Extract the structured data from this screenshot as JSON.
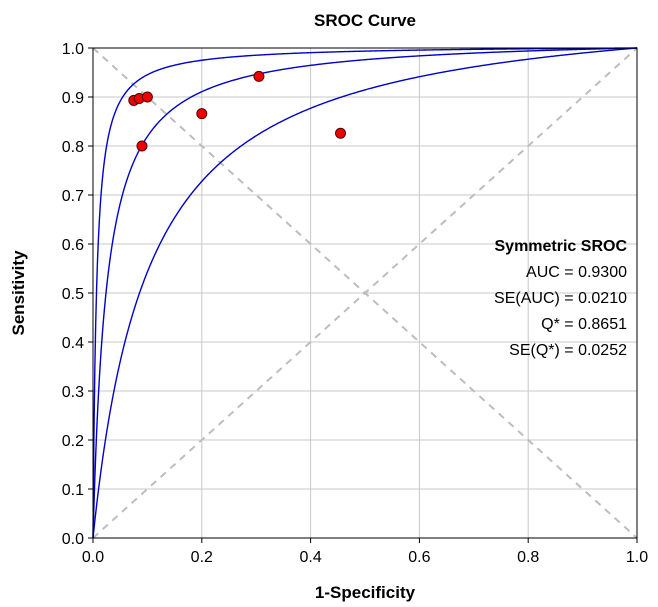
{
  "chart_data": {
    "type": "scatter",
    "title": "SROC Curve",
    "xlabel": "1-Specificity",
    "ylabel": "Sensitivity",
    "xlim": [
      0,
      1
    ],
    "ylim": [
      0,
      1
    ],
    "x_ticks": [
      "0.0",
      "0.2",
      "0.4",
      "0.6",
      "0.8",
      "1.0"
    ],
    "y_ticks": [
      "0.0",
      "0.1",
      "0.2",
      "0.3",
      "0.4",
      "0.5",
      "0.6",
      "0.7",
      "0.8",
      "0.9",
      "1.0"
    ],
    "grid": true,
    "diagonals": "dashed gray chance line and anti-diagonal",
    "points": [
      {
        "x": 0.075,
        "y": 0.893
      },
      {
        "x": 0.085,
        "y": 0.897
      },
      {
        "x": 0.1,
        "y": 0.9
      },
      {
        "x": 0.09,
        "y": 0.8
      },
      {
        "x": 0.2,
        "y": 0.866
      },
      {
        "x": 0.305,
        "y": 0.942
      },
      {
        "x": 0.455,
        "y": 0.826
      }
    ],
    "curves": [
      {
        "curve": "upper",
        "log_dor": 5.05
      },
      {
        "curve": "middle",
        "log_dor": 3.71
      },
      {
        "curve": "lower",
        "log_dor": 2.37
      }
    ],
    "annotation": {
      "title": "Symmetric SROC",
      "lines": [
        "AUC = 0.9300",
        "SE(AUC) = 0.0210",
        "Q* = 0.8651",
        "SE(Q*) = 0.0252"
      ]
    },
    "colors": {
      "curve": "#0000c8",
      "point_fill": "#ee0000",
      "point_stroke": "#550000",
      "grid": "#c8c8c8",
      "diagonal": "#bdbdbd"
    }
  }
}
